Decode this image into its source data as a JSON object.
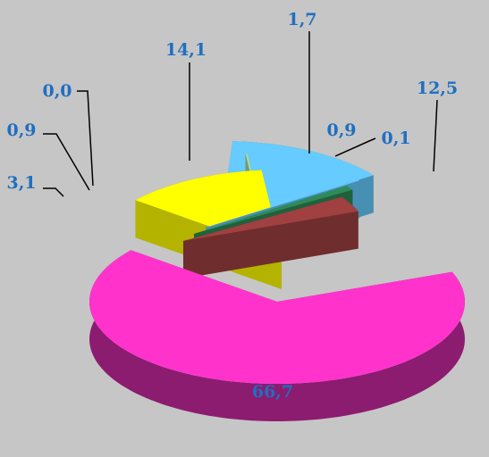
{
  "chart_data": {
    "type": "pie",
    "style": "3d-exploded",
    "legend": "none",
    "slices": [
      {
        "value": 66.7,
        "label": "66,7",
        "color": "#ff33cc"
      },
      {
        "value": 12.5,
        "label": "12,5",
        "color": "#ffff00"
      },
      {
        "value": 0.1,
        "label": "0,1",
        "color": "#a8d8a8"
      },
      {
        "value": 0.9,
        "label": "0,9",
        "color": "#0000aa"
      },
      {
        "value": 1.7,
        "label": "1,7",
        "color": "#e08a3c"
      },
      {
        "value": 14.1,
        "label": "14,1",
        "color": "#66ccff"
      },
      {
        "value": 0.0,
        "label": "0,0",
        "color": "#66ccff"
      },
      {
        "value": 0.9,
        "label": "0,9",
        "color": "#2e8b57"
      },
      {
        "value": 3.1,
        "label": "3,1",
        "color": "#a04040"
      }
    ],
    "label_color": "#1f6fc2",
    "background_color": "#c6c6c6"
  }
}
